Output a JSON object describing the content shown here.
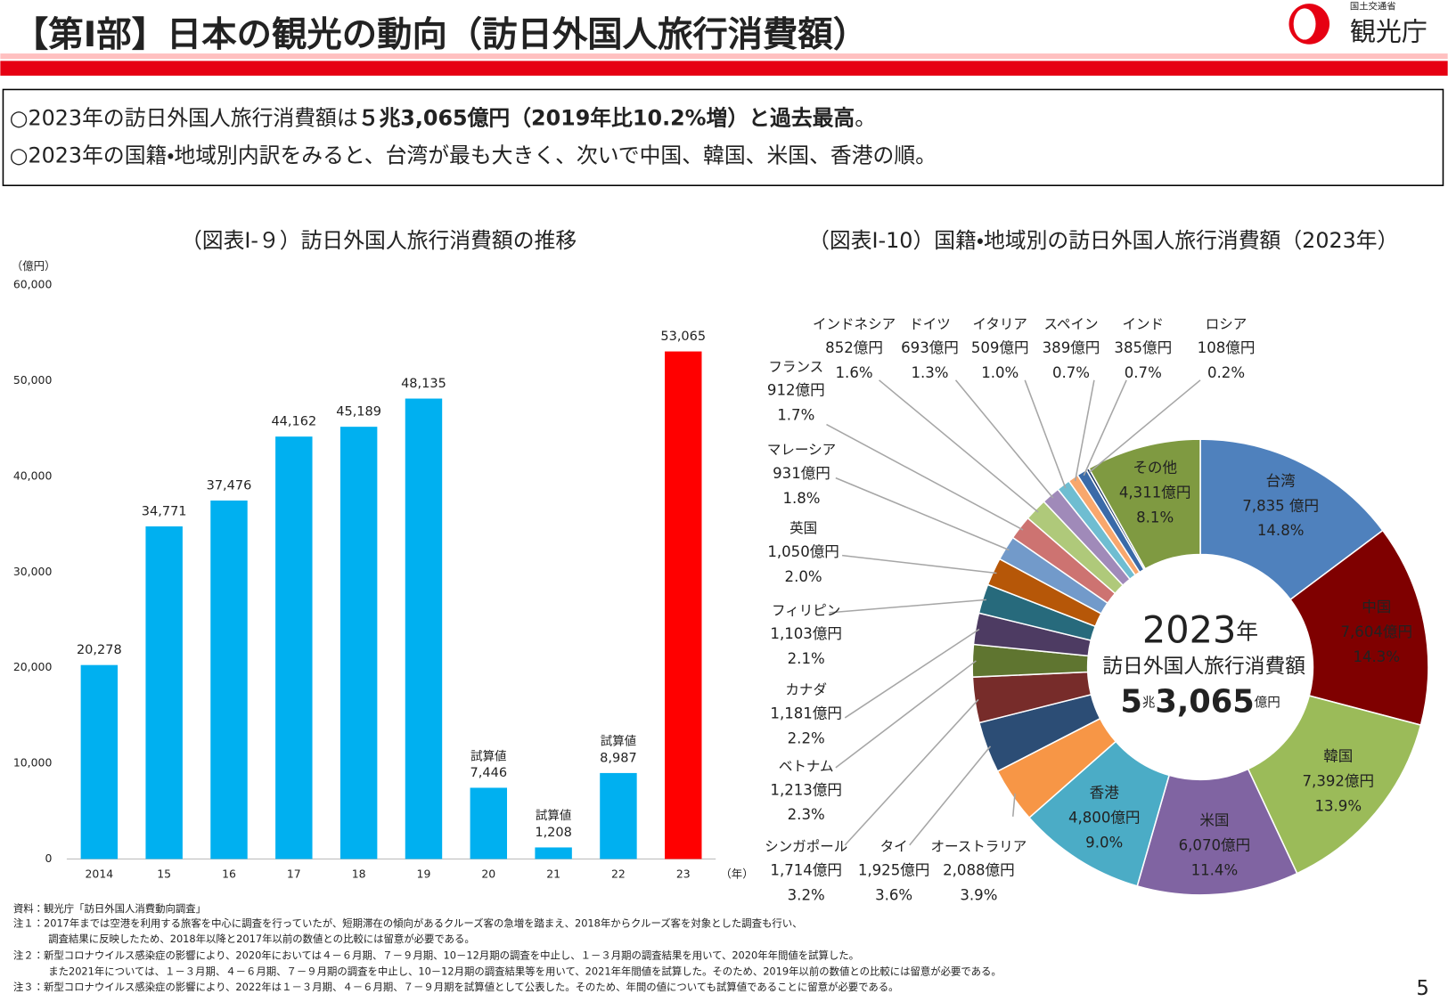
{
  "header": {
    "title": "【第Ⅰ部】日本の観光の動向（訪日外国人旅行消費額）",
    "ministry": "国土交通省",
    "agency": "観光庁"
  },
  "summary": {
    "line1": [
      "○2023年の訪日外国人旅行消費額は",
      "５兆3,065億円（2019年比10.2%増）と過去最高",
      "。"
    ],
    "line2": "○2023年の国籍・地域別内訳をみると、台湾が最も大きく、次いで中国、韓国、米国、香港の順。"
  },
  "chart_data": [
    {
      "type": "bar",
      "title": "（図表Ⅰ-９）訪日外国人旅行消費額の推移",
      "y_unit": "（億円）",
      "x_unit": "（年）",
      "categories": [
        "2014",
        "15",
        "16",
        "17",
        "18",
        "19",
        "20",
        "21",
        "22",
        "23"
      ],
      "values": [
        20278,
        34771,
        37476,
        44162,
        45189,
        48135,
        7446,
        1208,
        8987,
        53065
      ],
      "value_labels": [
        "20,278",
        "34,771",
        "37,476",
        "44,162",
        "45,189",
        "48,135",
        "7,446",
        "1,208",
        "8,987",
        "53,065"
      ],
      "annotations": [
        null,
        null,
        null,
        null,
        null,
        null,
        "試算値",
        "試算値",
        "試算値",
        null
      ],
      "colors": [
        "#00b0f0",
        "#00b0f0",
        "#00b0f0",
        "#00b0f0",
        "#00b0f0",
        "#00b0f0",
        "#00b0f0",
        "#00b0f0",
        "#00b0f0",
        "#ff0000"
      ],
      "ylim": [
        0,
        60000
      ],
      "yticks": [
        0,
        {
          "value": 10000,
          "label": "10,000"
        },
        {
          "value": 20000,
          "label": "20,000"
        },
        {
          "value": 30000,
          "label": "30,000"
        },
        {
          "value": 40000,
          "label": "40,000"
        },
        {
          "value": 50000,
          "label": "50,000"
        },
        {
          "value": 60000,
          "label": "60,000"
        }
      ],
      "grid": false
    },
    {
      "type": "donut",
      "title": "（図表Ⅰ-10）国籍・地域別の訪日外国人旅行消費額（2023年）",
      "categories": [
        "台湾",
        "中国",
        "韓国",
        "米国",
        "香港",
        "オーストラリア",
        "タイ",
        "シンガポール",
        "ベトナム",
        "カナダ",
        "フィリピン",
        "英国",
        "マレーシア",
        "フランス",
        "インドネシア",
        "ドイツ",
        "イタリア",
        "スペイン",
        "インド",
        "ロシア",
        "その他"
      ],
      "values": [
        7835,
        7604,
        7392,
        6070,
        4800,
        2088,
        1925,
        1714,
        1213,
        1181,
        1103,
        1050,
        931,
        912,
        852,
        693,
        509,
        389,
        385,
        108,
        4311
      ],
      "value_labels": [
        "7,835 億円",
        "7,604億円",
        "7,392億円",
        "6,070億円",
        "4,800億円",
        "2,088億円",
        "1,925億円",
        "1,714億円",
        "1,213億円",
        "1,181億円",
        "1,103億円",
        "1,050億円",
        "931億円",
        "912億円",
        "852億円",
        "693億円",
        "509億円",
        "389億円",
        "385億円",
        "108億円",
        "4,311億円"
      ],
      "shares": [
        14.8,
        14.3,
        13.9,
        11.4,
        9.0,
        3.9,
        3.6,
        3.2,
        2.3,
        2.2,
        2.1,
        2.0,
        1.8,
        1.7,
        1.6,
        1.3,
        1.0,
        0.7,
        0.7,
        0.2,
        8.1
      ],
      "share_labels": [
        "14.8%",
        "14.3%",
        "13.9%",
        "11.4%",
        "9.0%",
        "3.9%",
        "3.6%",
        "3.2%",
        "2.3%",
        "2.2%",
        "2.1%",
        "2.0%",
        "1.8%",
        "1.7%",
        "1.6%",
        "1.3%",
        "1.0%",
        "0.7%",
        "0.7%",
        "0.2%",
        "8.1%"
      ],
      "colors": [
        "#4f81bd",
        "#7f0000",
        "#9bbb59",
        "#8064a2",
        "#4bacc6",
        "#f79646",
        "#2c4d75",
        "#772c2a",
        "#5f7530",
        "#4d3b62",
        "#276a7c",
        "#b65708",
        "#729aca",
        "#cd7371",
        "#afc97a",
        "#a08ab9",
        "#6fbdd1",
        "#f8a76d",
        "#3a6aa8",
        "#1f3864",
        "#7f9a41"
      ],
      "center": {
        "year": "2023",
        "year_unit": "年",
        "caption": "訪日外国人旅行消費額",
        "trillion": "5",
        "trillion_unit": "兆",
        "rest": "3,065",
        "rest_unit": "億円"
      }
    }
  ],
  "notes": [
    "資料：観光庁「訪日外国人消費動向調査」",
    "注１：2017年までは空港を利用する旅客を中心に調査を行っていたが、短期滞在の傾向があるクルーズ客の急増を踏まえ、2018年からクルーズ客を対象とした調査も行い、",
    "調査結果に反映したため、2018年以降と2017年以前の数値との比較には留意が必要である。",
    "注２：新型コロナウイルス感染症の影響により、2020年においては４－６月期、７－９月期、10－12月期の調査を中止し、１－３月期の調査結果を用いて、2020年年間値を試算した。",
    "また2021年については、１－３月期、４－６月期、７－９月期の調査を中止し、10－12月期の調査結果等を用いて、2021年年間値を試算した。そのため、2019年以前の数値との比較には留意が必要である。",
    "注３：新型コロナウイルス感染症の影響により、2022年は１－３月期、４－６月期、７－９月期を試算値として公表した。そのため、年間の値についても試算値であることに留意が必要である。"
  ],
  "page_number": "5"
}
